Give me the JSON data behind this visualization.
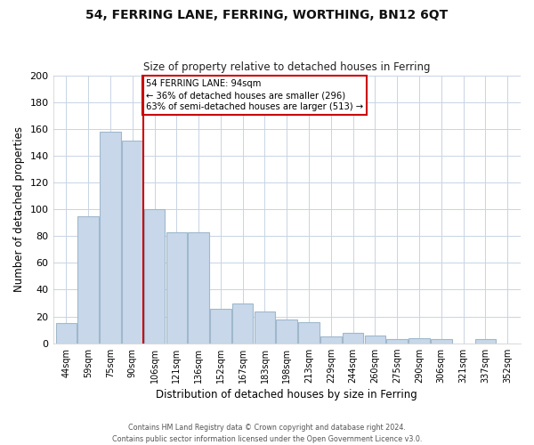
{
  "title": "54, FERRING LANE, FERRING, WORTHING, BN12 6QT",
  "subtitle": "Size of property relative to detached houses in Ferring",
  "xlabel": "Distribution of detached houses by size in Ferring",
  "ylabel": "Number of detached properties",
  "bar_color": "#c8d8ea",
  "bar_edge_color": "#a0b8cc",
  "categories": [
    "44sqm",
    "59sqm",
    "75sqm",
    "90sqm",
    "106sqm",
    "121sqm",
    "136sqm",
    "152sqm",
    "167sqm",
    "183sqm",
    "198sqm",
    "213sqm",
    "229sqm",
    "244sqm",
    "260sqm",
    "275sqm",
    "290sqm",
    "306sqm",
    "321sqm",
    "337sqm",
    "352sqm"
  ],
  "values": [
    15,
    95,
    158,
    151,
    100,
    83,
    83,
    26,
    30,
    24,
    18,
    16,
    5,
    8,
    6,
    3,
    4,
    3,
    0,
    3,
    0
  ],
  "vline_x": 3.5,
  "vline_color": "#cc0000",
  "annotation_title": "54 FERRING LANE: 94sqm",
  "annotation_line1": "← 36% of detached houses are smaller (296)",
  "annotation_line2": "63% of semi-detached houses are larger (513) →",
  "annotation_box_color": "#ffffff",
  "annotation_box_edge": "#cc0000",
  "ylim": [
    0,
    200
  ],
  "yticks": [
    0,
    20,
    40,
    60,
    80,
    100,
    120,
    140,
    160,
    180,
    200
  ],
  "footer1": "Contains HM Land Registry data © Crown copyright and database right 2024.",
  "footer2": "Contains public sector information licensed under the Open Government Licence v3.0."
}
